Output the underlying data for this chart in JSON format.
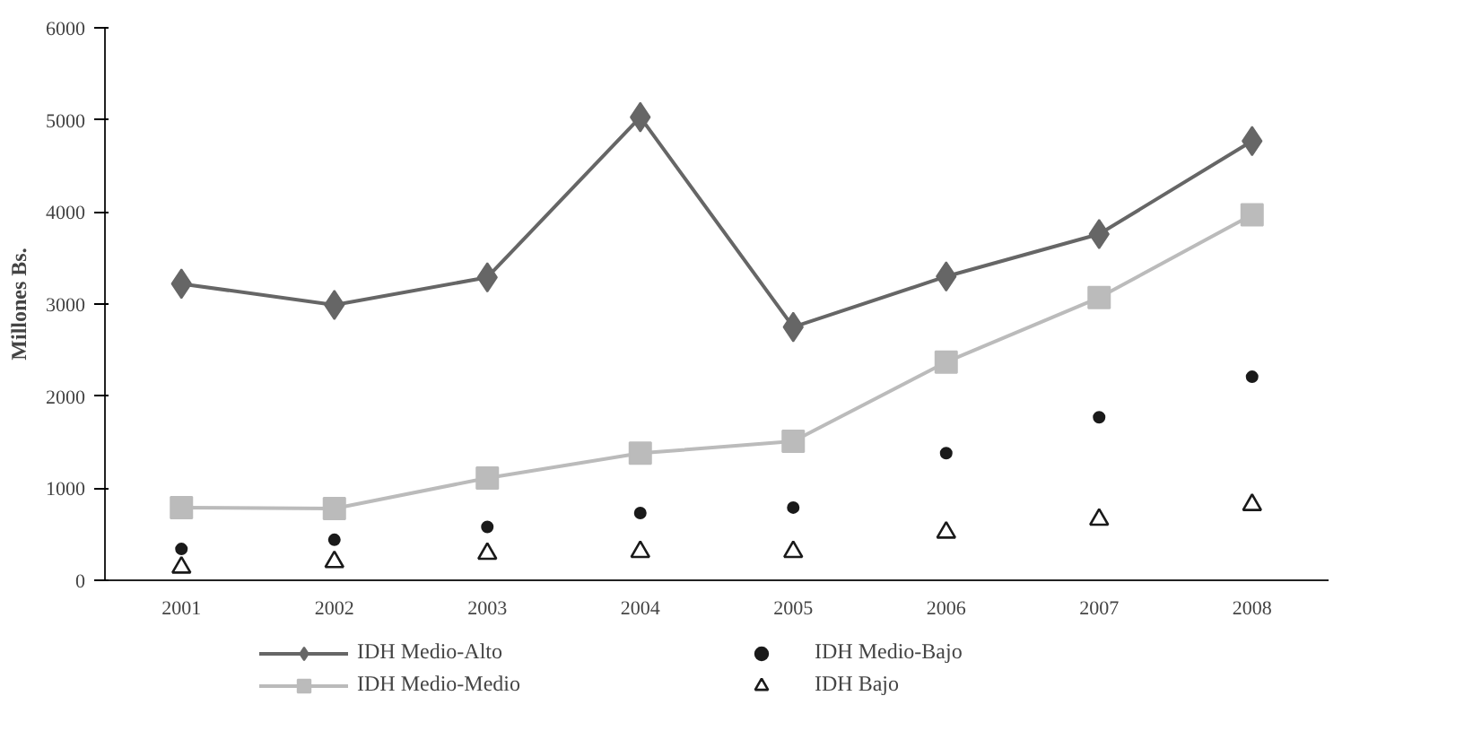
{
  "chart_data": {
    "type": "line",
    "ylabel": "Millones Bs.",
    "categories": [
      "2001",
      "2002",
      "2003",
      "2004",
      "2005",
      "2006",
      "2007",
      "2008"
    ],
    "series": [
      {
        "name": "IDH Medio-Alto",
        "color": "#666666",
        "marker": "diamond",
        "values": [
          3220,
          2990,
          3290,
          5030,
          2750,
          3300,
          3760,
          4770
        ]
      },
      {
        "name": "IDH Medio-Medio",
        "color": "#bbbbbb",
        "marker": "square",
        "values": [
          790,
          780,
          1110,
          1380,
          1510,
          2370,
          3070,
          3970
        ]
      },
      {
        "name": "IDH Medio-Bajo",
        "type": "scatter",
        "color": "#1a1a1a",
        "marker": "circle",
        "values": [
          340,
          440,
          580,
          730,
          790,
          1380,
          1770,
          2210
        ]
      },
      {
        "name": "IDH Bajo",
        "type": "scatter",
        "color": "#1a1a1a",
        "marker": "triangle",
        "values": [
          140,
          200,
          290,
          310,
          310,
          520,
          660,
          820
        ]
      }
    ],
    "ylim": [
      0,
      6000
    ],
    "yticks": [
      0,
      1000,
      2000,
      3000,
      4000,
      5000,
      6000
    ],
    "grid": false,
    "legend": "bottom",
    "line_style": "solid"
  }
}
